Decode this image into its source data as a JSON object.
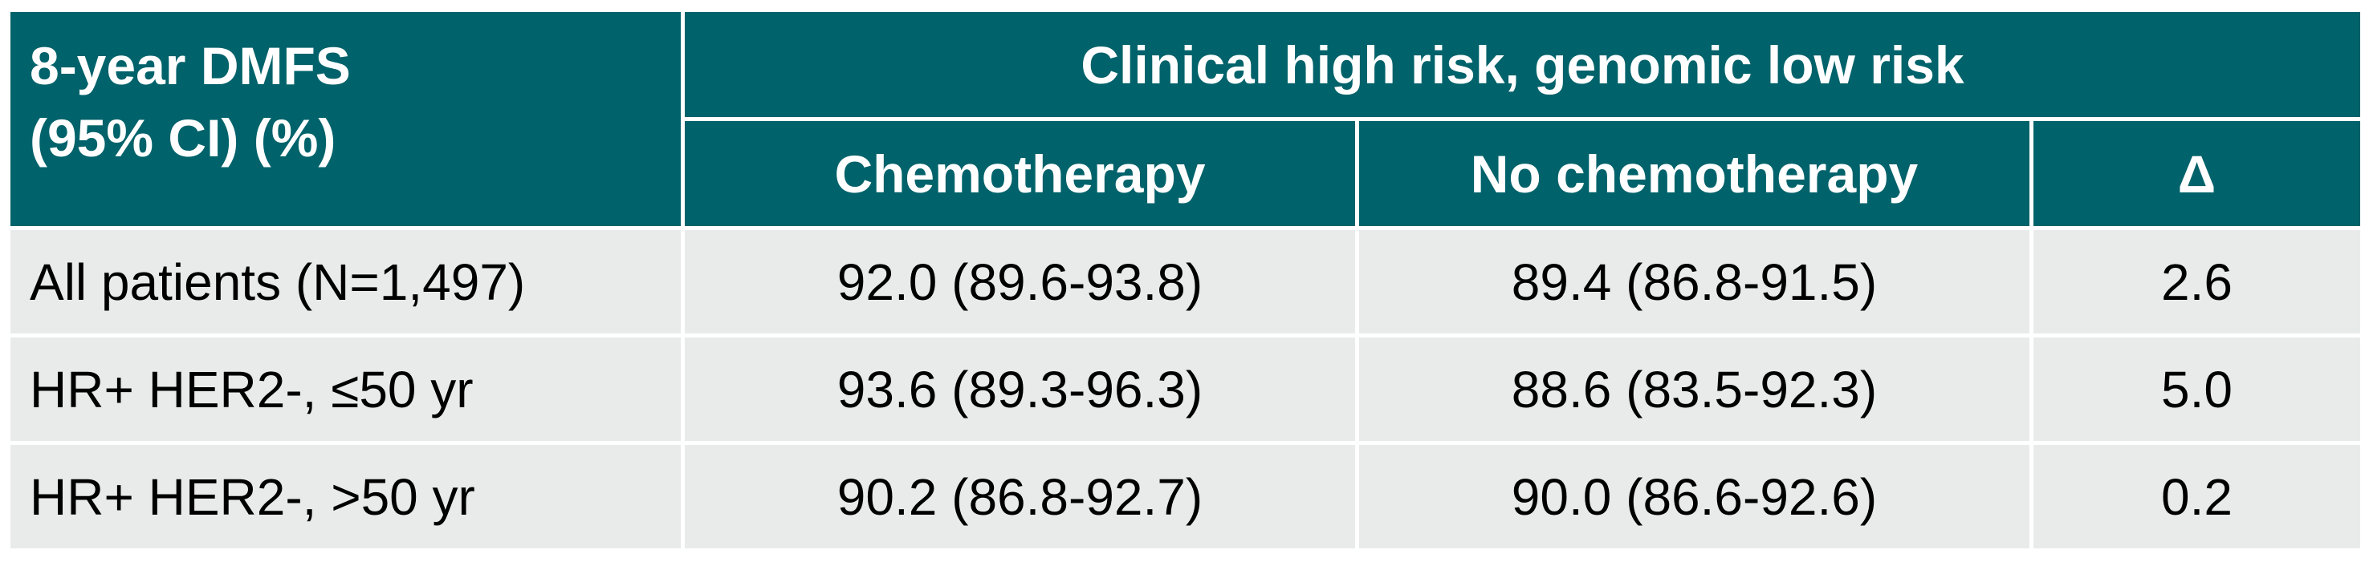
{
  "table": {
    "corner_header": [
      "8-year DMFS",
      "(95% CI) (%)"
    ],
    "group_header": "Clinical high risk, genomic low risk",
    "columns": [
      "Chemotherapy",
      "No chemotherapy",
      "Δ"
    ],
    "rows": [
      {
        "label": "All patients (N=1,497)",
        "chemo": "92.0 (89.6-93.8)",
        "no_chemo": "89.4 (86.8-91.5)",
        "delta": "2.6"
      },
      {
        "label": "HR+ HER2-, ≤50 yr",
        "chemo": "93.6 (89.3-96.3)",
        "no_chemo": "88.6 (83.5-92.3)",
        "delta": "5.0"
      },
      {
        "label": "HR+ HER2-, >50 yr",
        "chemo": "90.2 (86.8-92.7)",
        "no_chemo": "90.0 (86.6-92.6)",
        "delta": "0.2"
      }
    ]
  },
  "colors": {
    "header_bg": "#00626a",
    "header_text": "#ffffff",
    "row_bg": "#e9ebeb",
    "border": "#ffffff"
  }
}
